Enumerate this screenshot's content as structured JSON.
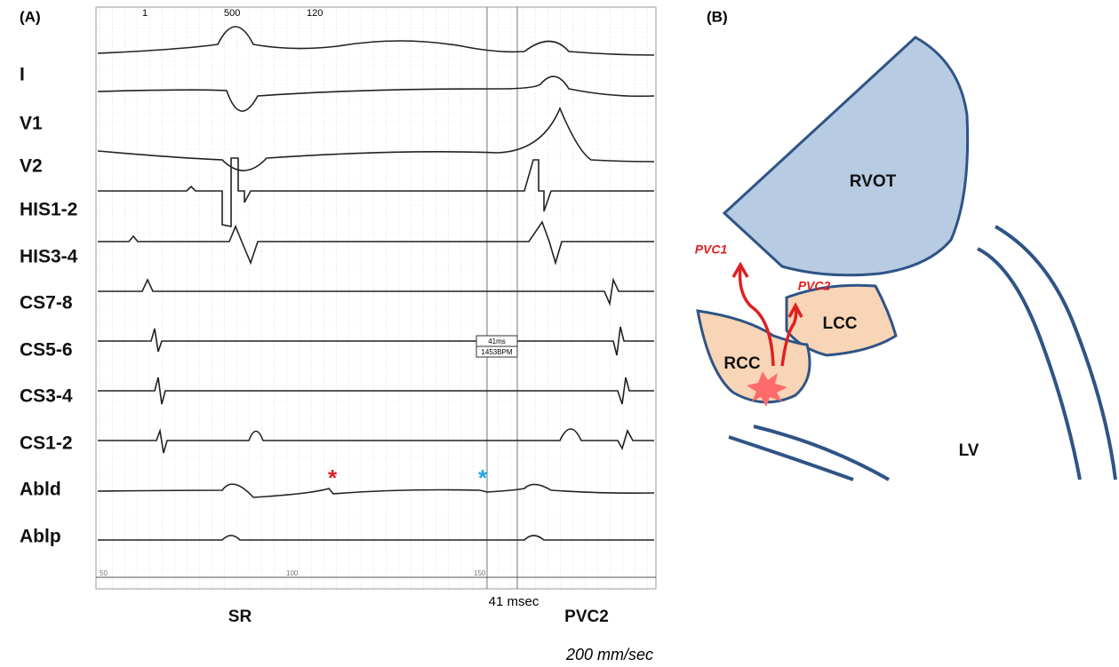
{
  "panel_a": {
    "label": "(A)",
    "channels": [
      "I",
      "V1",
      "V2",
      "HIS1-2",
      "HIS3-4",
      "CS7-8",
      "CS5-6",
      "CS3-4",
      "CS1-2",
      "Abld",
      "Ablp"
    ],
    "top_numbers": [
      "1",
      "500",
      "120"
    ],
    "ruler_numbers": [
      "50",
      "100",
      "150"
    ],
    "box_texts": [
      "41ms",
      "1453BPM"
    ],
    "markers": [
      "*",
      "*"
    ],
    "bottom_labels": {
      "left": "SR",
      "interval": "41 msec",
      "right": "PVC2",
      "speed": "200 mm/sec"
    }
  },
  "panel_b": {
    "label": "(B)",
    "regions": [
      "RVOT",
      "LCC",
      "RCC",
      "LV"
    ],
    "arrows": [
      "PVC1",
      "PVC2"
    ]
  }
}
